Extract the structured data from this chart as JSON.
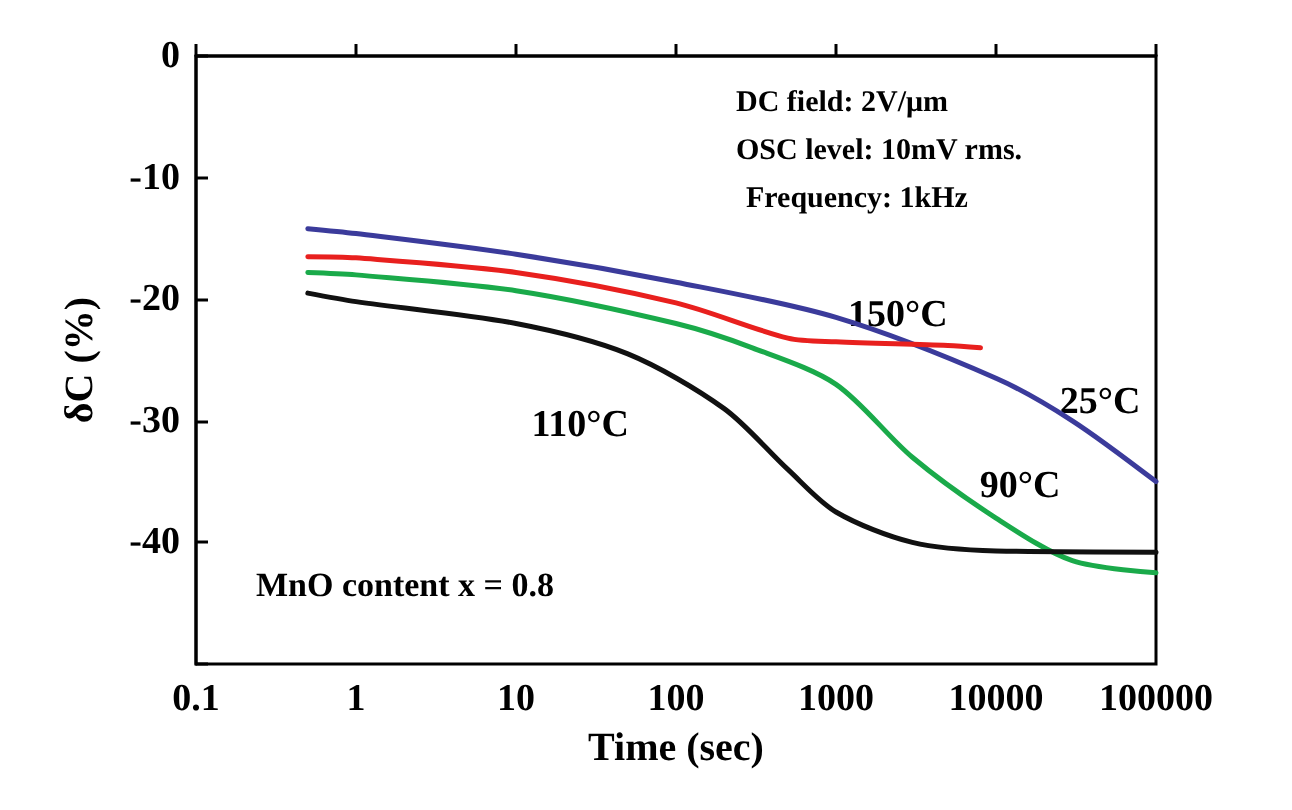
{
  "chart_data": {
    "type": "line",
    "xlabel": "Time (sec)",
    "ylabel": "δC (%)",
    "log": "x",
    "xlim": [
      0.1,
      100000
    ],
    "xticks": [
      0.1,
      1,
      10,
      100,
      1000,
      10000,
      100000
    ],
    "ylim": [
      -50,
      0
    ],
    "yticks": [
      {
        "value": -50,
        "label": null
      },
      -40,
      -30,
      -20,
      -10,
      0
    ],
    "grid": false,
    "legend": false,
    "marker": "none",
    "line_style": "solid",
    "series": [
      {
        "name": "25°C",
        "color": "#3b3b9b",
        "x": [
          0.5,
          1,
          10,
          100,
          1000,
          10000,
          30000,
          100000
        ],
        "values": [
          -14.2,
          -14.6,
          -16.3,
          -18.6,
          -21.5,
          -26.5,
          -30,
          -35
        ]
      },
      {
        "name": "150°C",
        "color": "#e8201e",
        "x": [
          0.5,
          1,
          10,
          100,
          500,
          1000,
          5000,
          8000
        ],
        "values": [
          -16.5,
          -16.6,
          -17.8,
          -20.3,
          -23.2,
          -23.5,
          -23.8,
          -24
        ]
      },
      {
        "name": "90°C",
        "color": "#1aaa4a",
        "x": [
          0.5,
          1,
          10,
          100,
          300,
          1000,
          3000,
          10000,
          30000,
          100000
        ],
        "values": [
          -17.8,
          -18,
          -19.3,
          -22,
          -24,
          -27,
          -33,
          -38,
          -41.5,
          -42.5
        ]
      },
      {
        "name": "110°C",
        "color": "#111111",
        "x": [
          0.5,
          1,
          10,
          50,
          200,
          500,
          1000,
          3000,
          10000,
          100000
        ],
        "values": [
          -19.5,
          -20.2,
          -22,
          -24.5,
          -29,
          -34,
          -37.5,
          -40,
          -40.7,
          -40.8
        ]
      }
    ],
    "annotations": [
      "DC field: 2V/μm",
      "OSC level: 10mV rms.",
      "Frequency: 1kHz",
      "MnO content x = 0.8"
    ]
  }
}
